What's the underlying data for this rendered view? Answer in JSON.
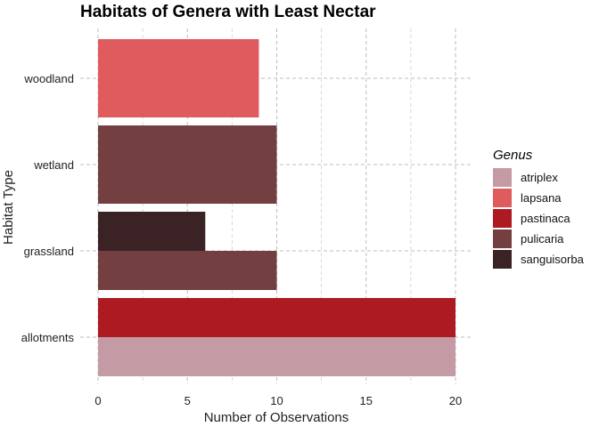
{
  "chart_data": {
    "type": "bar",
    "orientation": "horizontal",
    "title": "Habitats of Genera with Least Nectar",
    "xlabel": "Number of Observations",
    "ylabel": "Habitat Type",
    "xlim": [
      0,
      20
    ],
    "x_ticks": [
      0,
      5,
      10,
      15,
      20
    ],
    "grid": true,
    "legend": {
      "title": "Genus",
      "placement": "right"
    },
    "categories": [
      "allotments",
      "grassland",
      "wetland",
      "woodland"
    ],
    "series": [
      {
        "name": "atriplex",
        "color": "#c49ba4"
      },
      {
        "name": "lapsana",
        "color": "#e05b5d"
      },
      {
        "name": "pastinaca",
        "color": "#ad1a22"
      },
      {
        "name": "pulicaria",
        "color": "#733f40"
      },
      {
        "name": "sanguisorba",
        "color": "#3b2225"
      }
    ],
    "bars": [
      {
        "category": "allotments",
        "genus": "atriplex",
        "value": 20
      },
      {
        "category": "allotments",
        "genus": "pastinaca",
        "value": 20
      },
      {
        "category": "grassland",
        "genus": "pulicaria",
        "value": 10
      },
      {
        "category": "grassland",
        "genus": "sanguisorba",
        "value": 6
      },
      {
        "category": "wetland",
        "genus": "pulicaria",
        "value": 10
      },
      {
        "category": "woodland",
        "genus": "lapsana",
        "value": 9
      }
    ]
  }
}
